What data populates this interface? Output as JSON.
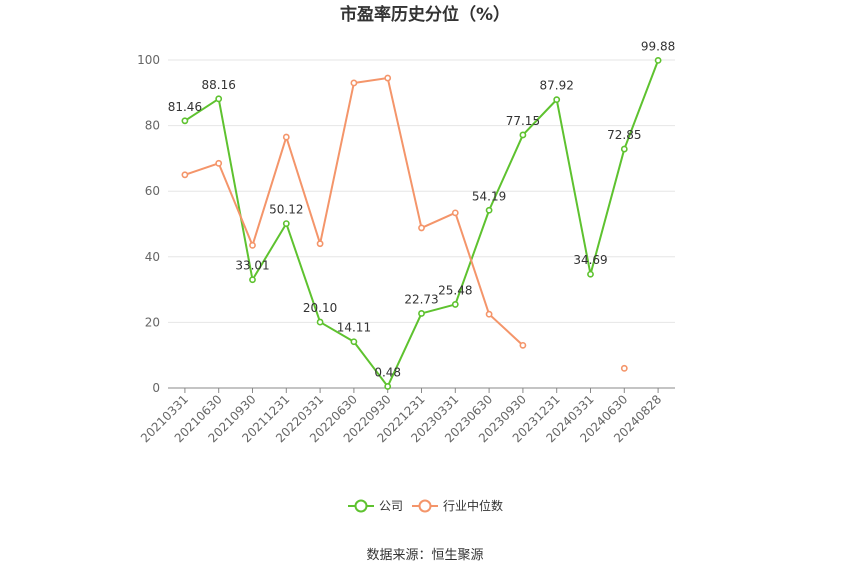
{
  "chart_data": {
    "type": "line",
    "title": "市盈率历史分位（%）",
    "categories": [
      "20210331",
      "20210630",
      "20210930",
      "20211231",
      "20220331",
      "20220630",
      "20220930",
      "20221231",
      "20230331",
      "20230630",
      "20230930",
      "20231231",
      "20240331",
      "20240630",
      "20240828"
    ],
    "series": [
      {
        "name": "公司",
        "color": "#5ec22f",
        "values": [
          81.46,
          88.16,
          33.01,
          50.12,
          20.1,
          14.11,
          0.48,
          22.73,
          25.48,
          54.19,
          77.15,
          87.92,
          34.69,
          72.85,
          99.88
        ],
        "labels": [
          "81.46",
          "88.16",
          "33.01",
          "50.12",
          "20.10",
          "14.11",
          "0.48",
          "22.73",
          "25.48",
          "54.19",
          "77.15",
          "87.92",
          "34.69",
          "72.85",
          "99.88"
        ]
      },
      {
        "name": "行业中位数",
        "color": "#f4956a",
        "values": [
          65,
          68.5,
          43.5,
          76.5,
          44,
          93,
          94.5,
          48.8,
          53.4,
          22.5,
          13,
          null,
          null,
          6,
          null
        ]
      }
    ],
    "y_ticks": [
      "0",
      "20",
      "40",
      "60",
      "80",
      "100"
    ],
    "ylim": [
      0,
      100
    ],
    "grid": true,
    "legend_position": "bottom"
  },
  "source_text": "数据来源：恒生聚源"
}
